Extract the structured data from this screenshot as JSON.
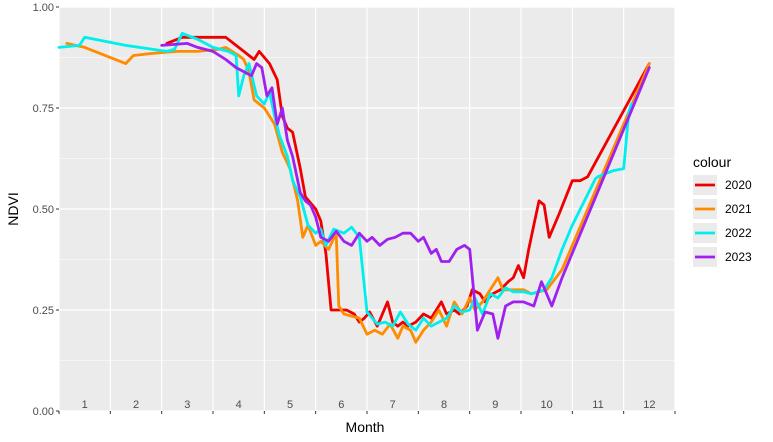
{
  "chart_data": {
    "type": "line",
    "title": "",
    "xlabel": "Month",
    "ylabel": "NDVI",
    "xlim": [
      0.5,
      12.5
    ],
    "ylim": [
      0,
      1
    ],
    "y_ticks": [
      "0.00",
      "0.25",
      "0.50",
      "0.75",
      "1.00"
    ],
    "x_tick_labels": [
      "1",
      "2",
      "3",
      "4",
      "5",
      "6",
      "7",
      "8",
      "9",
      "10",
      "11",
      "12"
    ],
    "grid": true,
    "legend": {
      "title": "colour",
      "position": "right"
    },
    "series": [
      {
        "name": "2020",
        "color": "#ee0000",
        "points": [
          [
            2.6,
            0.91
          ],
          [
            2.9,
            0.925
          ],
          [
            3.2,
            0.925
          ],
          [
            3.5,
            0.925
          ],
          [
            3.75,
            0.925
          ],
          [
            4.1,
            0.89
          ],
          [
            4.3,
            0.87
          ],
          [
            4.4,
            0.89
          ],
          [
            4.6,
            0.86
          ],
          [
            4.75,
            0.82
          ],
          [
            4.85,
            0.73
          ],
          [
            4.95,
            0.7
          ],
          [
            5.05,
            0.69
          ],
          [
            5.2,
            0.6
          ],
          [
            5.3,
            0.53
          ],
          [
            5.5,
            0.5
          ],
          [
            5.6,
            0.47
          ],
          [
            5.7,
            0.39
          ],
          [
            5.8,
            0.25
          ],
          [
            5.95,
            0.25
          ],
          [
            6.1,
            0.25
          ],
          [
            6.25,
            0.24
          ],
          [
            6.35,
            0.22
          ],
          [
            6.45,
            0.23
          ],
          [
            6.55,
            0.245
          ],
          [
            6.7,
            0.21
          ],
          [
            6.8,
            0.24
          ],
          [
            6.9,
            0.27
          ],
          [
            7.0,
            0.22
          ],
          [
            7.1,
            0.21
          ],
          [
            7.2,
            0.22
          ],
          [
            7.3,
            0.21
          ],
          [
            7.45,
            0.22
          ],
          [
            7.6,
            0.24
          ],
          [
            7.75,
            0.23
          ],
          [
            7.85,
            0.25
          ],
          [
            7.95,
            0.27
          ],
          [
            8.05,
            0.24
          ],
          [
            8.2,
            0.25
          ],
          [
            8.3,
            0.24
          ],
          [
            8.45,
            0.26
          ],
          [
            8.55,
            0.3
          ],
          [
            8.7,
            0.29
          ],
          [
            8.8,
            0.27
          ],
          [
            8.95,
            0.29
          ],
          [
            9.1,
            0.3
          ],
          [
            9.25,
            0.32
          ],
          [
            9.35,
            0.33
          ],
          [
            9.45,
            0.36
          ],
          [
            9.55,
            0.33
          ],
          [
            9.65,
            0.4
          ],
          [
            9.75,
            0.46
          ],
          [
            9.85,
            0.52
          ],
          [
            9.95,
            0.51
          ],
          [
            10.05,
            0.43
          ],
          [
            10.25,
            0.49
          ],
          [
            10.5,
            0.57
          ],
          [
            10.65,
            0.57
          ],
          [
            10.8,
            0.58
          ],
          [
            12.0,
            0.86
          ]
        ]
      },
      {
        "name": "2021",
        "color": "#ff8c00",
        "points": [
          [
            0.65,
            0.91
          ],
          [
            1.0,
            0.9
          ],
          [
            1.8,
            0.86
          ],
          [
            1.95,
            0.88
          ],
          [
            2.3,
            0.885
          ],
          [
            2.8,
            0.89
          ],
          [
            3.2,
            0.89
          ],
          [
            3.6,
            0.895
          ],
          [
            3.75,
            0.9
          ],
          [
            4.0,
            0.88
          ],
          [
            4.1,
            0.87
          ],
          [
            4.2,
            0.84
          ],
          [
            4.3,
            0.77
          ],
          [
            4.5,
            0.75
          ],
          [
            4.7,
            0.71
          ],
          [
            4.85,
            0.64
          ],
          [
            5.0,
            0.6
          ],
          [
            5.15,
            0.52
          ],
          [
            5.25,
            0.43
          ],
          [
            5.35,
            0.46
          ],
          [
            5.5,
            0.41
          ],
          [
            5.6,
            0.42
          ],
          [
            5.75,
            0.4
          ],
          [
            5.9,
            0.44
          ],
          [
            5.95,
            0.26
          ],
          [
            6.05,
            0.24
          ],
          [
            6.2,
            0.235
          ],
          [
            6.35,
            0.23
          ],
          [
            6.5,
            0.19
          ],
          [
            6.65,
            0.2
          ],
          [
            6.8,
            0.19
          ],
          [
            6.95,
            0.215
          ],
          [
            7.1,
            0.18
          ],
          [
            7.2,
            0.21
          ],
          [
            7.35,
            0.2
          ],
          [
            7.45,
            0.17
          ],
          [
            7.6,
            0.2
          ],
          [
            7.75,
            0.22
          ],
          [
            7.9,
            0.25
          ],
          [
            8.05,
            0.21
          ],
          [
            8.2,
            0.27
          ],
          [
            8.35,
            0.24
          ],
          [
            8.5,
            0.28
          ],
          [
            8.6,
            0.25
          ],
          [
            8.75,
            0.27
          ],
          [
            8.9,
            0.3
          ],
          [
            9.05,
            0.33
          ],
          [
            9.15,
            0.3
          ],
          [
            9.4,
            0.3
          ],
          [
            9.55,
            0.3
          ],
          [
            9.7,
            0.29
          ],
          [
            10.0,
            0.3
          ],
          [
            10.3,
            0.35
          ],
          [
            12.0,
            0.86
          ]
        ]
      },
      {
        "name": "2022",
        "color": "#00eeee",
        "points": [
          [
            0.5,
            0.9
          ],
          [
            0.9,
            0.905
          ],
          [
            1.0,
            0.925
          ],
          [
            1.8,
            0.905
          ],
          [
            2.6,
            0.89
          ],
          [
            2.75,
            0.895
          ],
          [
            2.9,
            0.935
          ],
          [
            3.2,
            0.92
          ],
          [
            3.5,
            0.9
          ],
          [
            3.8,
            0.89
          ],
          [
            3.95,
            0.88
          ],
          [
            4.0,
            0.78
          ],
          [
            4.1,
            0.83
          ],
          [
            4.2,
            0.86
          ],
          [
            4.35,
            0.78
          ],
          [
            4.5,
            0.76
          ],
          [
            4.6,
            0.79
          ],
          [
            4.7,
            0.73
          ],
          [
            4.8,
            0.68
          ],
          [
            4.95,
            0.63
          ],
          [
            5.05,
            0.57
          ],
          [
            5.2,
            0.53
          ],
          [
            5.35,
            0.46
          ],
          [
            5.5,
            0.44
          ],
          [
            5.6,
            0.45
          ],
          [
            5.7,
            0.41
          ],
          [
            5.85,
            0.45
          ],
          [
            6.05,
            0.44
          ],
          [
            6.2,
            0.455
          ],
          [
            6.35,
            0.43
          ],
          [
            6.5,
            0.245
          ],
          [
            6.7,
            0.215
          ],
          [
            6.85,
            0.22
          ],
          [
            7.0,
            0.21
          ],
          [
            7.15,
            0.245
          ],
          [
            7.3,
            0.215
          ],
          [
            7.45,
            0.2
          ],
          [
            7.6,
            0.23
          ],
          [
            7.75,
            0.21
          ],
          [
            7.9,
            0.22
          ],
          [
            8.05,
            0.23
          ],
          [
            8.2,
            0.26
          ],
          [
            8.35,
            0.245
          ],
          [
            8.5,
            0.25
          ],
          [
            8.6,
            0.28
          ],
          [
            8.75,
            0.24
          ],
          [
            8.9,
            0.29
          ],
          [
            9.05,
            0.28
          ],
          [
            9.2,
            0.305
          ],
          [
            9.35,
            0.295
          ],
          [
            9.55,
            0.295
          ],
          [
            9.7,
            0.29
          ],
          [
            9.95,
            0.3
          ],
          [
            10.1,
            0.33
          ],
          [
            10.3,
            0.4
          ],
          [
            10.5,
            0.46
          ],
          [
            10.95,
            0.575
          ],
          [
            11.0,
            0.58
          ],
          [
            11.3,
            0.595
          ],
          [
            11.5,
            0.6
          ],
          [
            11.6,
            0.74
          ],
          [
            11.65,
            0.76
          ]
        ]
      },
      {
        "name": "2023",
        "color": "#a020f0",
        "points": [
          [
            2.5,
            0.905
          ],
          [
            3.0,
            0.91
          ],
          [
            3.2,
            0.9
          ],
          [
            3.5,
            0.89
          ],
          [
            3.75,
            0.87
          ],
          [
            3.95,
            0.85
          ],
          [
            4.25,
            0.83
          ],
          [
            4.35,
            0.86
          ],
          [
            4.45,
            0.85
          ],
          [
            4.55,
            0.78
          ],
          [
            4.65,
            0.8
          ],
          [
            4.75,
            0.71
          ],
          [
            4.85,
            0.75
          ],
          [
            4.95,
            0.67
          ],
          [
            5.05,
            0.63
          ],
          [
            5.2,
            0.54
          ],
          [
            5.3,
            0.52
          ],
          [
            5.4,
            0.51
          ],
          [
            5.5,
            0.48
          ],
          [
            5.6,
            0.43
          ],
          [
            5.75,
            0.42
          ],
          [
            5.9,
            0.445
          ],
          [
            6.05,
            0.42
          ],
          [
            6.2,
            0.41
          ],
          [
            6.35,
            0.44
          ],
          [
            6.5,
            0.42
          ],
          [
            6.6,
            0.43
          ],
          [
            6.75,
            0.41
          ],
          [
            6.9,
            0.425
          ],
          [
            7.05,
            0.43
          ],
          [
            7.2,
            0.44
          ],
          [
            7.35,
            0.44
          ],
          [
            7.5,
            0.42
          ],
          [
            7.6,
            0.43
          ],
          [
            7.75,
            0.39
          ],
          [
            7.85,
            0.4
          ],
          [
            7.95,
            0.37
          ],
          [
            8.1,
            0.37
          ],
          [
            8.25,
            0.4
          ],
          [
            8.4,
            0.41
          ],
          [
            8.5,
            0.4
          ],
          [
            8.65,
            0.2
          ],
          [
            8.8,
            0.245
          ],
          [
            8.95,
            0.24
          ],
          [
            9.05,
            0.18
          ],
          [
            9.2,
            0.26
          ],
          [
            9.35,
            0.27
          ],
          [
            9.55,
            0.27
          ],
          [
            9.75,
            0.26
          ],
          [
            9.9,
            0.32
          ],
          [
            10.1,
            0.26
          ],
          [
            10.3,
            0.33
          ],
          [
            12.0,
            0.85
          ]
        ]
      }
    ]
  }
}
